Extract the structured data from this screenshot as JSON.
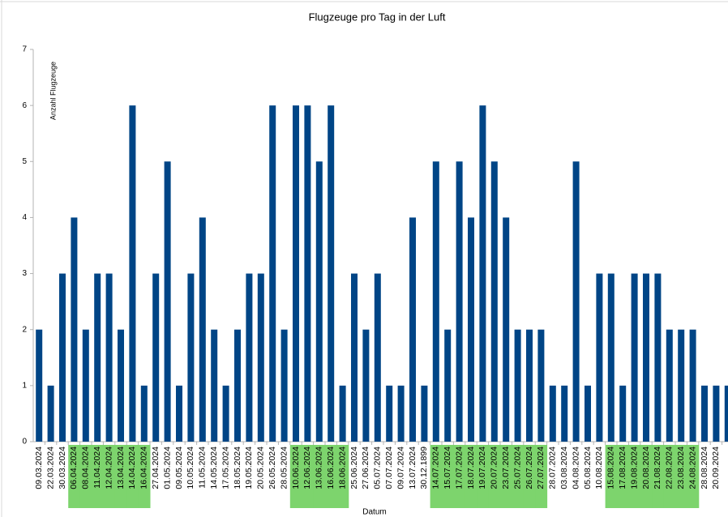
{
  "chart_data": {
    "type": "bar",
    "title": "Flugzeuge pro Tag in der Luft",
    "x_label": "Datum",
    "y_label": "Anzahl Flugzeuge",
    "categories": [
      "09.03.2024",
      "22.03.2024",
      "30.03.2024",
      "06.04.2024",
      "08.04.2024",
      "11.04.2024",
      "12.04.2024",
      "13.04.2024",
      "14.04.2024",
      "16.04.2024",
      "27.04.2024",
      "01.05.2024",
      "09.05.2024",
      "10.05.2024",
      "11.05.2024",
      "14.05.2024",
      "17.05.2024",
      "18.05.2024",
      "19.05.2024",
      "20.05.2024",
      "26.05.2024",
      "28.05.2024",
      "10.06.2024",
      "12.06.2024",
      "13.06.2024",
      "16.06.2024",
      "18.06.2024",
      "25.06.2024",
      "27.06.2024",
      "05.07.2024",
      "07.07.2024",
      "09.07.2024",
      "13.07.2024",
      "30.12.1899",
      "14.07.2024",
      "15.07.2024",
      "17.07.2024",
      "18.07.2024",
      "19.07.2024",
      "20.07.2024",
      "23.07.2024",
      "25.07.2024",
      "26.07.2024",
      "27.07.2024",
      "28.07.2024",
      "03.08.2024",
      "04.08.2024",
      "05.08.2024",
      "10.08.2024",
      "15.08.2024",
      "17.08.2024",
      "19.08.2024",
      "20.08.2024",
      "21.08.2024",
      "22.08.2024",
      "23.08.2024",
      "24.08.2024",
      "28.08.2024",
      "20.09.2024",
      null
    ],
    "values": [
      2,
      1,
      3,
      4,
      2,
      3,
      3,
      2,
      6,
      1,
      3,
      5,
      1,
      3,
      4,
      2,
      1,
      2,
      3,
      3,
      6,
      2,
      6,
      6,
      5,
      6,
      1,
      3,
      2,
      3,
      1,
      1,
      4,
      1,
      5,
      2,
      5,
      4,
      6,
      5,
      4,
      2,
      2,
      2,
      1,
      1,
      5,
      1,
      3,
      3,
      1,
      3,
      3,
      3,
      2,
      2,
      2,
      1,
      1,
      1
    ],
    "label_highlight": [
      false,
      false,
      false,
      true,
      true,
      true,
      true,
      true,
      true,
      true,
      false,
      false,
      false,
      false,
      false,
      false,
      false,
      false,
      false,
      false,
      false,
      false,
      true,
      true,
      true,
      true,
      true,
      false,
      false,
      false,
      false,
      false,
      false,
      false,
      true,
      true,
      true,
      true,
      true,
      true,
      true,
      true,
      true,
      true,
      false,
      false,
      false,
      false,
      false,
      true,
      true,
      true,
      true,
      true,
      true,
      true,
      true,
      false,
      false,
      false
    ],
    "color": "#004586",
    "highlight_color": "#7dd46d",
    "ylim": [
      0,
      7
    ],
    "yticks": [
      0,
      1,
      2,
      3,
      4,
      5,
      6,
      7
    ],
    "grid": false
  }
}
